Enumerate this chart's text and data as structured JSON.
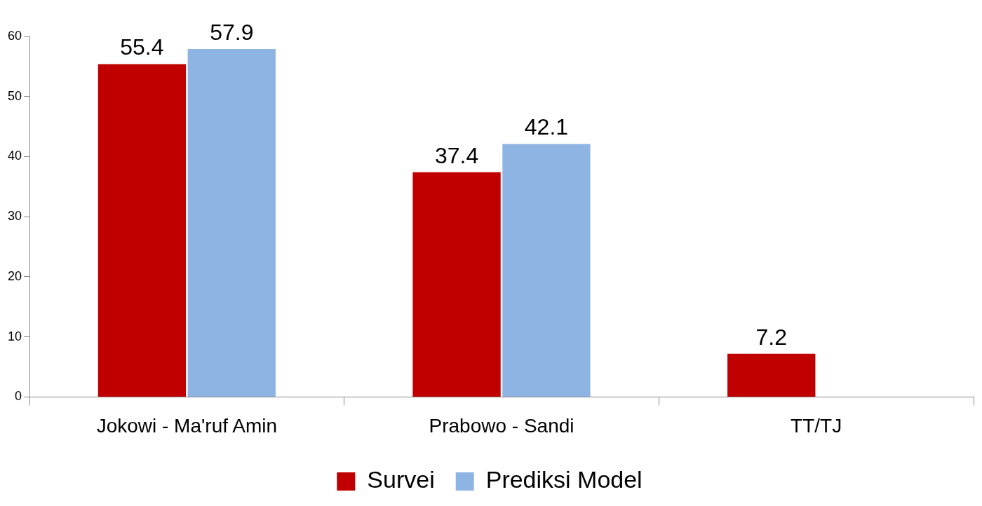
{
  "chart_data": {
    "type": "bar",
    "categories": [
      "Jokowi - Ma'ruf Amin",
      "Prabowo - Sandi",
      "TT/TJ"
    ],
    "series": [
      {
        "name": "Survei",
        "color": "#c00000",
        "values": [
          55.4,
          37.4,
          7.2
        ]
      },
      {
        "name": "Prediksi Model",
        "color": "#8db4e2",
        "values": [
          57.9,
          42.1,
          null
        ]
      }
    ],
    "ylim": [
      0,
      60
    ],
    "yticks": [
      0,
      10,
      20,
      30,
      40,
      50,
      60
    ],
    "grid": false,
    "legend": "bottom",
    "data_labels": true
  }
}
